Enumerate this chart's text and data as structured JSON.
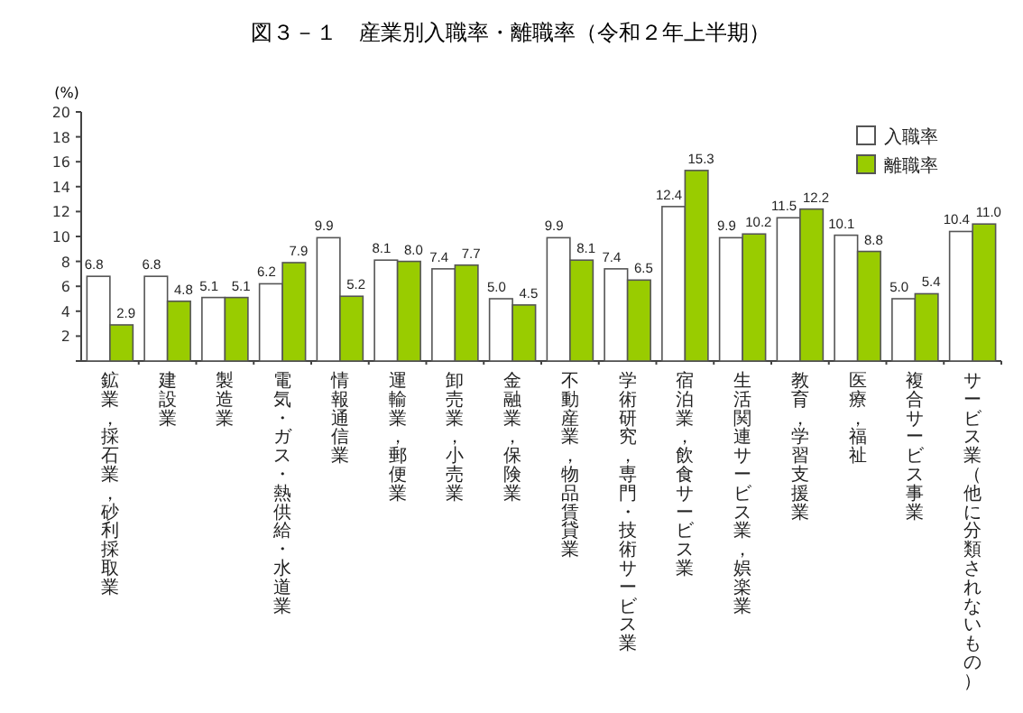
{
  "chart_data": {
    "type": "bar",
    "title": "図３－１　産業別入職率・離職率（令和２年上半期）",
    "ylabel": "(%)",
    "categories": [
      "鉱業，採石業，砂利採取業",
      "建設業",
      "製造業",
      "電気・ガス・熱供給・水道業",
      "情報通信業",
      "運輸業，郵便業",
      "卸売業，小売業",
      "金融業，保険業",
      "不動産業，物品賃貸業",
      "学術研究，専門・技術サービス業",
      "宿泊業，飲食サービス業",
      "生活関連サービス業，娯楽業",
      "教育，学習支援業",
      "医療，福祉",
      "複合サービス事業",
      "サービス業（他に分類されないもの）"
    ],
    "series": [
      {
        "name": "入職率",
        "color": "#ffffff",
        "values": [
          6.8,
          6.8,
          5.1,
          6.2,
          9.9,
          8.1,
          7.4,
          5.0,
          9.9,
          7.4,
          12.4,
          9.9,
          11.5,
          10.1,
          5.0,
          10.4
        ],
        "value_labels": [
          "6.8",
          "6.8",
          "5.1",
          "6.2",
          "9.9",
          "8.1",
          "7.4",
          "5.0",
          "9.9",
          "7.4",
          "12.4",
          "9.9",
          "11.5",
          "10.1",
          "5.0",
          "10.4"
        ]
      },
      {
        "name": "離職率",
        "color": "#99cc00",
        "values": [
          2.9,
          4.8,
          5.1,
          7.9,
          5.2,
          8.0,
          7.7,
          4.5,
          8.1,
          6.5,
          15.3,
          10.2,
          12.2,
          8.8,
          5.4,
          11.0
        ],
        "value_labels": [
          "2.9",
          "4.8",
          "5.1",
          "7.9",
          "5.2",
          "8.0",
          "7.7",
          "4.5",
          "8.1",
          "6.5",
          "15.3",
          "10.2",
          "12.2",
          "8.8",
          "5.4",
          "11.0"
        ]
      }
    ],
    "ylim": [
      0,
      20
    ],
    "yticks": [
      {
        "value": 0,
        "label": null
      },
      2,
      4,
      6,
      8,
      10,
      12,
      14,
      16,
      18,
      20
    ],
    "legend": "top right",
    "grid": false
  }
}
